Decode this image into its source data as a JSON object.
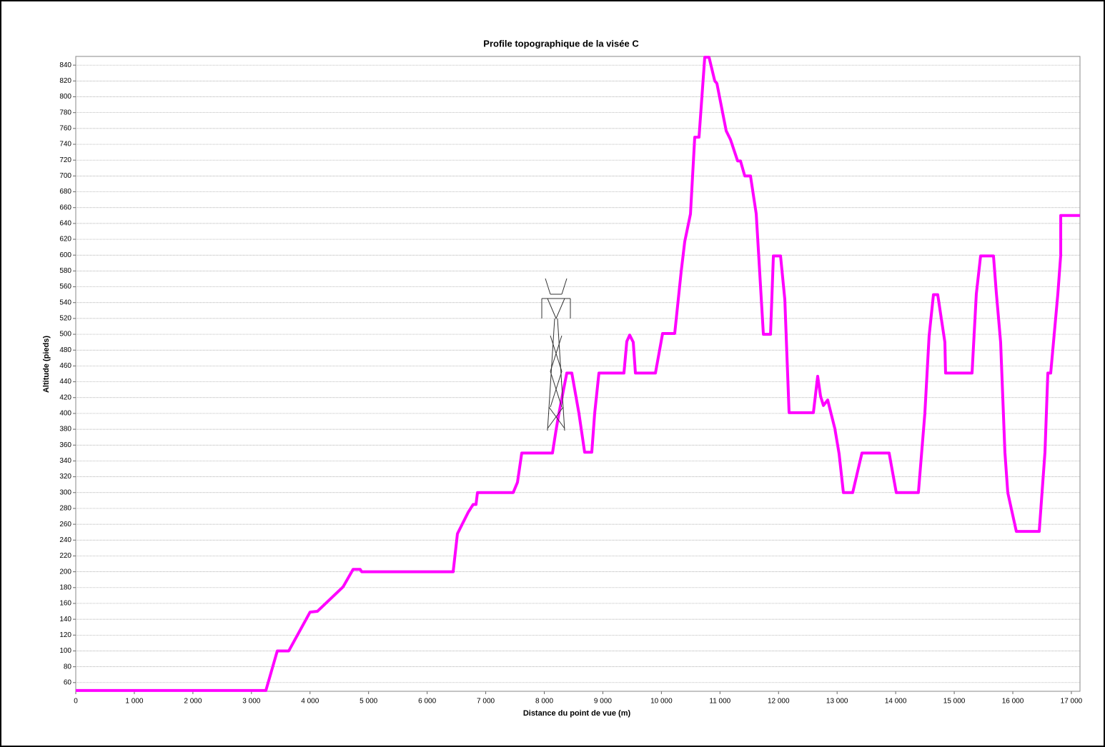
{
  "chart_data": {
    "type": "line",
    "title": "Profile topographique de la visée C",
    "x_label": "Distance du point de vue  (m)",
    "y_label": "Altitude  (pieds)",
    "x": [
      0,
      3246,
      3441,
      3637,
      4000,
      4125,
      4565,
      4735,
      4857,
      4882,
      6444,
      6517,
      6700,
      6785,
      6834,
      6859,
      7469,
      7542,
      7615,
      8140,
      8201,
      8250,
      8384,
      8470,
      8592,
      8689,
      8811,
      8860,
      8933,
      9360,
      9409,
      9458,
      9519,
      9556,
      9898,
      10020,
      10227,
      10337,
      10398,
      10496,
      10569,
      10642,
      10740,
      10813,
      10911,
      10947,
      11106,
      11179,
      11301,
      11350,
      11423,
      11521,
      11619,
      11741,
      11863,
      11912,
      12034,
      12107,
      12180,
      12595,
      12668,
      12717,
      12766,
      12839,
      12961,
      13034,
      13107,
      13266,
      13351,
      13424,
      13888,
      14010,
      14388,
      14498,
      14571,
      14645,
      14718,
      14840,
      14852,
      15304,
      15377,
      15450,
      15670,
      15719,
      15792,
      15865,
      15914,
      16060,
      16451,
      16549,
      16598,
      16647,
      16769,
      16818,
      16818,
      17147
    ],
    "series": [
      {
        "color": "#ff00ff",
        "values": [
          50,
          50,
          100,
          100,
          149,
          150,
          181,
          203,
          203,
          200,
          200,
          248,
          275,
          285,
          285,
          300,
          300,
          313,
          350,
          350,
          379,
          400,
          451,
          451,
          400,
          351,
          351,
          400,
          451,
          451,
          491,
          499,
          490,
          451,
          451,
          501,
          501,
          579,
          617,
          652,
          749,
          749,
          850,
          850,
          820,
          817,
          757,
          746,
          719,
          719,
          700,
          700,
          652,
          500,
          500,
          599,
          599,
          544,
          401,
          401,
          447,
          422,
          410,
          417,
          381,
          349,
          300,
          300,
          327,
          350,
          350,
          300,
          300,
          400,
          498,
          550,
          550,
          490,
          451,
          451,
          551,
          599,
          599,
          552,
          490,
          351,
          300,
          251,
          251,
          351,
          451,
          451,
          551,
          600,
          650,
          650
        ]
      }
    ],
    "xlim": [
      0,
      17147
    ],
    "ylim": [
      49,
      851
    ],
    "xticks": [
      0,
      {
        "value": 1000,
        "label": "1 000"
      },
      {
        "value": 2000,
        "label": "2 000"
      },
      {
        "value": 3000,
        "label": "3 000"
      },
      {
        "value": 4000,
        "label": "4 000"
      },
      {
        "value": 5000,
        "label": "5 000"
      },
      {
        "value": 6000,
        "label": "6 000"
      },
      {
        "value": 7000,
        "label": "7 000"
      },
      {
        "value": 8000,
        "label": "8 000"
      },
      {
        "value": 9000,
        "label": "9 000"
      },
      {
        "value": 10000,
        "label": "10 000"
      },
      {
        "value": 11000,
        "label": "11 000"
      },
      {
        "value": 12000,
        "label": "12 000"
      },
      {
        "value": 13000,
        "label": "13 000"
      },
      {
        "value": 14000,
        "label": "14 000"
      },
      {
        "value": 15000,
        "label": "15 000"
      },
      {
        "value": 16000,
        "label": "16 000"
      },
      {
        "value": 17000,
        "label": "17 000"
      }
    ],
    "yticks": [
      60,
      80,
      100,
      120,
      140,
      160,
      180,
      200,
      220,
      240,
      260,
      280,
      300,
      320,
      340,
      360,
      380,
      400,
      420,
      440,
      460,
      480,
      500,
      520,
      540,
      560,
      580,
      600,
      620,
      640,
      660,
      680,
      700,
      720,
      740,
      760,
      780,
      800,
      820,
      840
    ],
    "grid": true
  }
}
